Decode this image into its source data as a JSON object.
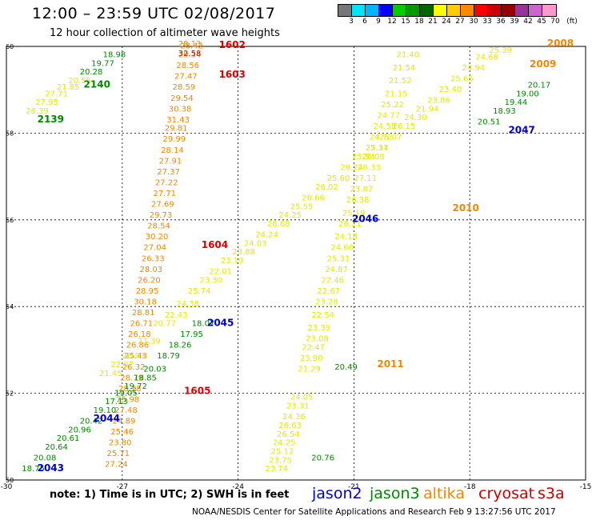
{
  "header": {
    "title": "12:00 – 23:59 UTC 02/08/2017",
    "subtitle": "12 hour collection of altimeter wave heights"
  },
  "colorbar": {
    "colors": [
      "#777777",
      "#00e5ff",
      "#00b4ff",
      "#0000ff",
      "#00cc00",
      "#009900",
      "#006600",
      "#ffff00",
      "#ffcc00",
      "#ff8800",
      "#ff0000",
      "#cc0000",
      "#990000",
      "#993399",
      "#cc66cc",
      "#ff99cc"
    ],
    "labels": [
      "3",
      "6",
      "9",
      "12",
      "15",
      "18",
      "21",
      "24",
      "27",
      "30",
      "33",
      "36",
      "39",
      "42",
      "45",
      "70",
      "(ft)"
    ]
  },
  "axes": {
    "lon_ticks": [
      "-30",
      "-27",
      "-24",
      "-21",
      "-18",
      "-15"
    ],
    "lat_ticks": [
      "50",
      "52",
      "54",
      "56",
      "58",
      "60"
    ]
  },
  "colors": {
    "jason2": "#0000cc",
    "jason3": "#008800",
    "altika": "#ee8800",
    "cryosat": "#cc0000",
    "s3a": "#cc0000",
    "yellow": "#e8e800",
    "orange": "#ee8800",
    "red": "#dd0000",
    "green": "#008800",
    "blue": "#0000cc"
  },
  "passes": [
    {
      "name": "1602",
      "color": "red",
      "lon": -24.5,
      "lat": 59.96
    },
    {
      "name": "1603",
      "color": "red",
      "lon": -24.5,
      "lat": 59.28
    },
    {
      "name": "1604",
      "color": "red",
      "lon": -24.95,
      "lat": 55.35
    },
    {
      "name": "1605",
      "color": "red",
      "lon": -25.4,
      "lat": 51.98
    },
    {
      "name": "2139",
      "color": "green",
      "lon": -29.2,
      "lat": 58.25
    },
    {
      "name": "2140",
      "color": "green",
      "lon": -28.0,
      "lat": 59.05
    },
    {
      "name": "2043",
      "color": "blue",
      "lon": -29.2,
      "lat": 50.2
    },
    {
      "name": "2044",
      "color": "blue",
      "lon": -27.75,
      "lat": 51.35
    },
    {
      "name": "2045",
      "color": "blue",
      "lon": -24.8,
      "lat": 53.55
    },
    {
      "name": "2046",
      "color": "blue",
      "lon": -21.05,
      "lat": 55.95
    },
    {
      "name": "2047",
      "color": "blue",
      "lon": -17.0,
      "lat": 58.0
    },
    {
      "name": "2008",
      "color": "orange",
      "lon": -16.0,
      "lat": 60.0
    },
    {
      "name": "2009",
      "color": "orange",
      "lon": -16.45,
      "lat": 59.52
    },
    {
      "name": "2010",
      "color": "orange",
      "lon": -18.45,
      "lat": 56.2
    },
    {
      "name": "2011",
      "color": "orange",
      "lon": -20.4,
      "lat": 52.6
    }
  ],
  "tracks": [
    {
      "color": "yellow",
      "points": [
        {
          "lon": -23.3,
          "lat": 50.2,
          "v": "23.74"
        },
        {
          "lon": -23.2,
          "lat": 50.4,
          "v": "23.75"
        },
        {
          "lon": -23.15,
          "lat": 50.6,
          "v": "25.12"
        },
        {
          "lon": -23.1,
          "lat": 50.8,
          "v": "24.25"
        },
        {
          "lon": -23.0,
          "lat": 51.0,
          "v": "26.54"
        },
        {
          "lon": -22.95,
          "lat": 51.2,
          "v": "26.63"
        },
        {
          "lon": -22.85,
          "lat": 51.4,
          "v": "24.36"
        },
        {
          "lon": -22.75,
          "lat": 51.65,
          "v": "23.31"
        },
        {
          "lon": -22.65,
          "lat": 51.85,
          "v": "24.05"
        },
        {
          "lon": -22.45,
          "lat": 52.5,
          "v": "21.29"
        },
        {
          "lon": -22.4,
          "lat": 52.75,
          "v": "23.90"
        },
        {
          "lon": -22.35,
          "lat": 53.0,
          "v": "22.47"
        },
        {
          "lon": -22.25,
          "lat": 53.2,
          "v": "23.08"
        },
        {
          "lon": -22.2,
          "lat": 53.45,
          "v": "23.39"
        },
        {
          "lon": -22.1,
          "lat": 53.75,
          "v": "22.54"
        },
        {
          "lon": -22.0,
          "lat": 54.05,
          "v": "23.28"
        },
        {
          "lon": -21.95,
          "lat": 54.3,
          "v": "22.67"
        },
        {
          "lon": -21.85,
          "lat": 54.55,
          "v": "22.46"
        },
        {
          "lon": -21.75,
          "lat": 54.8,
          "v": "24.87"
        },
        {
          "lon": -21.7,
          "lat": 55.05,
          "v": "25.31"
        },
        {
          "lon": -21.6,
          "lat": 55.3,
          "v": "24.66"
        },
        {
          "lon": -21.5,
          "lat": 55.55,
          "v": "24.18"
        },
        {
          "lon": -21.4,
          "lat": 55.85,
          "v": "26.21"
        },
        {
          "lon": -21.3,
          "lat": 56.1,
          "v": "25.19"
        },
        {
          "lon": -21.2,
          "lat": 56.4,
          "v": "26.38"
        },
        {
          "lon": -21.1,
          "lat": 56.65,
          "v": "23.87"
        },
        {
          "lon": -21.0,
          "lat": 56.9,
          "v": "27.11"
        },
        {
          "lon": -20.9,
          "lat": 57.15,
          "v": "26.33"
        },
        {
          "lon": -20.8,
          "lat": 57.4,
          "v": "26.08"
        },
        {
          "lon": -20.7,
          "lat": 57.6,
          "v": "27.34"
        },
        {
          "lon": -20.6,
          "lat": 57.85,
          "v": "24.72"
        },
        {
          "lon": -20.5,
          "lat": 58.1,
          "v": "24.58"
        },
        {
          "lon": -20.4,
          "lat": 58.35,
          "v": "24.77"
        },
        {
          "lon": -20.3,
          "lat": 58.6,
          "v": "25.22"
        },
        {
          "lon": -20.2,
          "lat": 58.85,
          "v": "21.15"
        },
        {
          "lon": -20.1,
          "lat": 59.15,
          "v": "21.52"
        },
        {
          "lon": -20.0,
          "lat": 59.45,
          "v": "21.54"
        },
        {
          "lon": -19.9,
          "lat": 59.75,
          "v": "21.40"
        }
      ]
    },
    {
      "color": "orange",
      "points": [
        {
          "lon": -27.45,
          "lat": 50.3,
          "v": "27.24"
        },
        {
          "lon": -27.4,
          "lat": 50.55,
          "v": "25.71"
        },
        {
          "lon": -27.35,
          "lat": 50.8,
          "v": "23.80"
        },
        {
          "lon": -27.3,
          "lat": 51.05,
          "v": "25.46"
        },
        {
          "lon": -27.25,
          "lat": 51.3,
          "v": "24.89"
        },
        {
          "lon": -27.2,
          "lat": 51.55,
          "v": "27.48"
        },
        {
          "lon": -27.15,
          "lat": 51.8,
          "v": "25.98"
        },
        {
          "lon": -27.1,
          "lat": 52.05,
          "v": "28.28"
        },
        {
          "lon": -27.05,
          "lat": 52.3,
          "v": "28.79"
        },
        {
          "lon": -27.0,
          "lat": 52.55,
          "v": "26.32"
        },
        {
          "lon": -26.95,
          "lat": 52.8,
          "v": "25.43"
        },
        {
          "lon": -26.9,
          "lat": 53.05,
          "v": "26.86"
        },
        {
          "lon": -26.85,
          "lat": 53.3,
          "v": "26.18"
        },
        {
          "lon": -26.8,
          "lat": 53.55,
          "v": "26.71"
        },
        {
          "lon": -26.75,
          "lat": 53.8,
          "v": "28.81"
        },
        {
          "lon": -26.7,
          "lat": 54.05,
          "v": "30.18"
        },
        {
          "lon": -26.65,
          "lat": 54.3,
          "v": "28.95"
        },
        {
          "lon": -26.6,
          "lat": 54.55,
          "v": "26.20"
        },
        {
          "lon": -26.55,
          "lat": 54.8,
          "v": "28.03"
        },
        {
          "lon": -26.5,
          "lat": 55.05,
          "v": "26.33"
        },
        {
          "lon": -26.45,
          "lat": 55.3,
          "v": "27.04"
        },
        {
          "lon": -26.4,
          "lat": 55.55,
          "v": "30.20"
        },
        {
          "lon": -26.35,
          "lat": 55.8,
          "v": "28.54"
        },
        {
          "lon": -26.3,
          "lat": 56.05,
          "v": "29.73"
        },
        {
          "lon": -26.25,
          "lat": 56.3,
          "v": "27.69"
        },
        {
          "lon": -26.2,
          "lat": 56.55,
          "v": "27.71"
        },
        {
          "lon": -26.15,
          "lat": 56.8,
          "v": "27.22"
        },
        {
          "lon": -26.1,
          "lat": 57.05,
          "v": "27.37"
        },
        {
          "lon": -26.05,
          "lat": 57.3,
          "v": "27.91"
        },
        {
          "lon": -26.0,
          "lat": 57.55,
          "v": "28.14"
        },
        {
          "lon": -25.95,
          "lat": 57.8,
          "v": "29.99"
        },
        {
          "lon": -25.9,
          "lat": 58.05,
          "v": "29.81"
        },
        {
          "lon": -25.85,
          "lat": 58.25,
          "v": "31.43"
        },
        {
          "lon": -25.8,
          "lat": 58.5,
          "v": "30.38"
        },
        {
          "lon": -25.75,
          "lat": 58.75,
          "v": "29.54"
        },
        {
          "lon": -25.7,
          "lat": 59.0,
          "v": "28.59"
        },
        {
          "lon": -25.65,
          "lat": 59.25,
          "v": "27.47"
        },
        {
          "lon": -25.6,
          "lat": 59.5,
          "v": "28.56"
        },
        {
          "lon": -25.55,
          "lat": 59.75,
          "v": "29.34"
        },
        {
          "lon": -25.5,
          "lat": 59.95,
          "v": "28.42"
        }
      ]
    },
    {
      "color": "yellow",
      "points": [
        {
          "lon": -27.6,
          "lat": 52.4,
          "v": "21.45"
        },
        {
          "lon": -27.3,
          "lat": 52.6,
          "v": "22.07"
        },
        {
          "lon": -27.0,
          "lat": 52.8,
          "v": "20.93"
        },
        {
          "lon": -26.6,
          "lat": 53.15,
          "v": "21.39"
        },
        {
          "lon": -26.2,
          "lat": 53.55,
          "v": "20.77"
        },
        {
          "lon": -25.9,
          "lat": 53.75,
          "v": "22.43"
        },
        {
          "lon": -25.6,
          "lat": 54.0,
          "v": "24.38"
        },
        {
          "lon": -25.3,
          "lat": 54.3,
          "v": "25.74"
        },
        {
          "lon": -25.0,
          "lat": 54.55,
          "v": "23.30"
        },
        {
          "lon": -24.75,
          "lat": 54.75,
          "v": "22.01"
        },
        {
          "lon": -24.45,
          "lat": 55.0,
          "v": "23.19"
        },
        {
          "lon": -24.15,
          "lat": 55.2,
          "v": "23.88"
        },
        {
          "lon": -23.85,
          "lat": 55.4,
          "v": "24.03"
        },
        {
          "lon": -23.55,
          "lat": 55.6,
          "v": "24.24"
        },
        {
          "lon": -23.25,
          "lat": 55.85,
          "v": "26.68"
        },
        {
          "lon": -22.95,
          "lat": 56.05,
          "v": "24.25"
        },
        {
          "lon": -22.65,
          "lat": 56.25,
          "v": "25.55"
        },
        {
          "lon": -22.35,
          "lat": 56.45,
          "v": "26.66"
        },
        {
          "lon": -22.0,
          "lat": 56.7,
          "v": "26.02"
        },
        {
          "lon": -21.7,
          "lat": 56.9,
          "v": "25.60"
        },
        {
          "lon": -21.35,
          "lat": 57.15,
          "v": "26.24"
        },
        {
          "lon": -21.05,
          "lat": 57.4,
          "v": "25.54"
        },
        {
          "lon": -20.7,
          "lat": 57.6,
          "v": "25.17"
        },
        {
          "lon": -20.35,
          "lat": 57.85,
          "v": "25.07"
        },
        {
          "lon": -20.0,
          "lat": 58.1,
          "v": "26.15"
        },
        {
          "lon": -19.7,
          "lat": 58.3,
          "v": "24.30"
        },
        {
          "lon": -19.4,
          "lat": 58.5,
          "v": "21.94"
        },
        {
          "lon": -19.1,
          "lat": 58.7,
          "v": "23.86"
        },
        {
          "lon": -18.8,
          "lat": 58.95,
          "v": "23.40"
        },
        {
          "lon": -18.5,
          "lat": 59.2,
          "v": "25.65"
        },
        {
          "lon": -18.2,
          "lat": 59.45,
          "v": "24.94"
        },
        {
          "lon": -17.85,
          "lat": 59.7,
          "v": "24.68"
        },
        {
          "lon": -17.5,
          "lat": 59.85,
          "v": "25.39"
        }
      ]
    },
    {
      "color": "green",
      "points": [
        {
          "lon": -29.6,
          "lat": 50.2,
          "v": "18.75"
        },
        {
          "lon": -29.3,
          "lat": 50.45,
          "v": "20.08"
        },
        {
          "lon": -29.0,
          "lat": 50.7,
          "v": "20.64"
        },
        {
          "lon": -28.7,
          "lat": 50.9,
          "v": "20.61"
        },
        {
          "lon": -28.4,
          "lat": 51.1,
          "v": "20.96"
        },
        {
          "lon": -28.1,
          "lat": 51.3,
          "v": "20.42"
        },
        {
          "lon": -27.75,
          "lat": 51.55,
          "v": "19.10"
        },
        {
          "lon": -27.45,
          "lat": 51.75,
          "v": "17.13"
        },
        {
          "lon": -27.2,
          "lat": 51.95,
          "v": "19.05"
        },
        {
          "lon": -26.95,
          "lat": 52.1,
          "v": "19.72"
        },
        {
          "lon": -26.7,
          "lat": 52.3,
          "v": "18.85"
        },
        {
          "lon": -26.45,
          "lat": 52.5,
          "v": "20.03"
        },
        {
          "lon": -26.1,
          "lat": 52.8,
          "v": "18.79"
        },
        {
          "lon": -25.8,
          "lat": 53.05,
          "v": "18.26"
        },
        {
          "lon": -25.5,
          "lat": 53.3,
          "v": "17.95"
        },
        {
          "lon": -25.2,
          "lat": 53.55,
          "v": "18.07"
        }
      ]
    },
    {
      "color": "green",
      "points": [
        {
          "lon": -17.8,
          "lat": 58.2,
          "v": "20.51"
        },
        {
          "lon": -17.4,
          "lat": 58.45,
          "v": "18.93"
        },
        {
          "lon": -17.1,
          "lat": 58.65,
          "v": "19.44"
        },
        {
          "lon": -16.8,
          "lat": 58.85,
          "v": "19.00"
        },
        {
          "lon": -16.5,
          "lat": 59.05,
          "v": "20.17"
        }
      ]
    },
    {
      "color": "green",
      "points": [
        {
          "lon": -22.1,
          "lat": 50.45,
          "v": "20.76"
        },
        {
          "lon": -21.5,
          "lat": 52.55,
          "v": "20.49"
        }
      ]
    },
    {
      "color": "yellow",
      "points": [
        {
          "lon": -29.5,
          "lat": 58.45,
          "v": "28.39"
        },
        {
          "lon": -29.25,
          "lat": 58.65,
          "v": "27.95"
        },
        {
          "lon": -29.0,
          "lat": 58.85,
          "v": "27.71"
        },
        {
          "lon": -28.7,
          "lat": 59.0,
          "v": "21.85"
        },
        {
          "lon": -28.4,
          "lat": 59.15,
          "v": "20.55"
        }
      ]
    },
    {
      "color": "green",
      "points": [
        {
          "lon": -28.1,
          "lat": 59.35,
          "v": "20.28"
        },
        {
          "lon": -27.8,
          "lat": 59.55,
          "v": "19.77"
        },
        {
          "lon": -27.5,
          "lat": 59.75,
          "v": "18.98"
        }
      ]
    },
    {
      "color": "orange",
      "points": [
        {
          "lon": -25.55,
          "lat": 60.0,
          "v": "28.13"
        }
      ]
    },
    {
      "color": "red",
      "points": [
        {
          "lon": -25.55,
          "lat": 59.78,
          "v": "32.58"
        }
      ]
    }
  ],
  "footer": {
    "note": "note:  1) Time is in UTC;  2) SWH is in feet",
    "legend": [
      {
        "name": "jason2",
        "color": "#0000cc"
      },
      {
        "name": "jason3",
        "color": "#008800"
      },
      {
        "name": "altika",
        "color": "#ee8800"
      },
      {
        "name": "cryosat",
        "color": "#cc0000"
      },
      {
        "name": "s3a",
        "color": "#cc0000"
      }
    ],
    "credit": "NOAA/NESDIS Center for Satellite Applications and Research    Feb  9 13:27:56 UTC 2017"
  }
}
